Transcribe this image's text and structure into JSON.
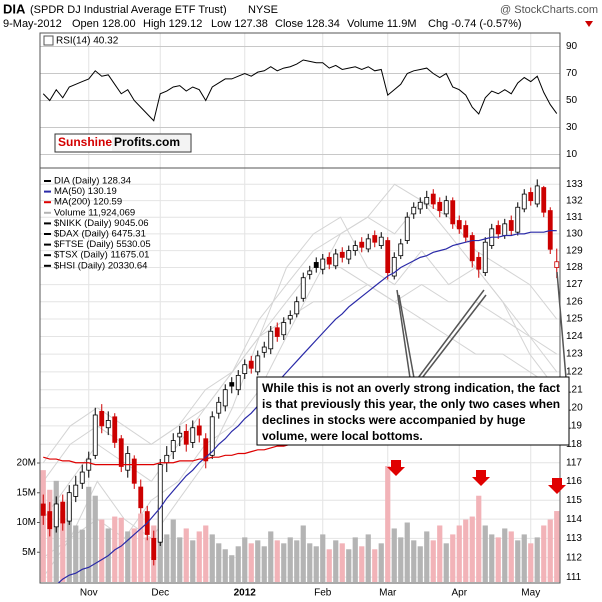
{
  "header": {
    "symbol": "DIA",
    "name": "(SPDR DJ Industrial Average ETF Trust)",
    "exchange": "NYSE",
    "source": "@ StockCharts.com",
    "date": "9-May-2012",
    "open": "Open 128.00",
    "high": "High 129.12",
    "low": "Low 127.38",
    "close": "Close 128.34",
    "volume": "Volume 11.9M",
    "change": "Chg -0.74 (-0.57%)"
  },
  "logo": {
    "brand": "Sunshine",
    "suffix": "Profits.com"
  },
  "annotation": {
    "lines": [
      "While this is not an overly strong indication, the fact",
      "is that previously this year, the only two cases when",
      "declines in stocks were accompanied by huge",
      "volume, were local bottoms."
    ]
  },
  "chart_data": [
    {
      "type": "line",
      "label": "RSI(14) 40.32",
      "color": "#000000",
      "ylim": [
        0,
        100
      ],
      "yticks": [
        10,
        30,
        50,
        70,
        90
      ],
      "grid": true,
      "values": [
        55,
        50,
        58,
        52,
        60,
        62,
        64,
        66,
        72,
        68,
        69,
        62,
        55,
        58,
        50,
        45,
        40,
        35,
        55,
        57,
        60,
        61,
        57,
        60,
        58,
        50,
        60,
        63,
        66,
        66,
        68,
        70,
        68,
        71,
        72,
        75,
        72,
        74,
        75,
        77,
        80,
        79,
        78,
        78,
        74,
        76,
        73,
        74,
        75,
        73,
        75,
        72,
        73,
        54,
        58,
        62,
        70,
        72,
        73,
        74,
        70,
        67,
        70,
        60,
        58,
        54,
        45,
        40,
        52,
        57,
        55,
        58,
        55,
        63,
        67,
        64,
        68,
        56,
        47,
        40.32
      ]
    },
    {
      "type": "candlestick",
      "name": "DIA (Daily) 128.34",
      "up_color": "#000000",
      "down_color": "#cc0000",
      "log_scale": true,
      "grid": true,
      "ylim": [
        110.7,
        134.0
      ],
      "yticks": [
        111,
        112,
        113,
        114,
        115,
        116,
        117,
        118,
        119,
        120,
        121,
        122,
        123,
        124,
        125,
        126,
        127,
        128,
        129,
        130,
        131,
        132,
        133
      ],
      "categories": [
        null,
        null,
        null,
        null,
        null,
        null,
        null,
        "Nov",
        null,
        null,
        null,
        null,
        null,
        null,
        null,
        null,
        null,
        null,
        "Dec",
        null,
        null,
        null,
        null,
        null,
        null,
        null,
        null,
        null,
        null,
        null,
        null,
        "2012",
        null,
        null,
        null,
        null,
        null,
        null,
        null,
        null,
        null,
        null,
        null,
        "Feb",
        null,
        null,
        null,
        null,
        null,
        null,
        null,
        null,
        null,
        "Mar",
        null,
        null,
        null,
        null,
        null,
        null,
        null,
        null,
        null,
        null,
        "Apr",
        null,
        null,
        null,
        null,
        null,
        null,
        null,
        null,
        null,
        null,
        "May",
        null,
        null,
        null,
        null
      ],
      "open": [
        114.8,
        114.4,
        113.6,
        114.9,
        113.9,
        115.2,
        115.9,
        116.6,
        117.4,
        119.8,
        118.9,
        119.5,
        118.3,
        116.6,
        117.2,
        115.7,
        114.4,
        113.0,
        112.8,
        117.0,
        117.6,
        118.4,
        118.7,
        118.1,
        119.0,
        118.3,
        117.4,
        119.7,
        120.1,
        121.4,
        121.0,
        121.9,
        122.6,
        122.0,
        123.1,
        123.3,
        124.5,
        124.1,
        125.0,
        125.3,
        126.2,
        127.6,
        128.3,
        127.9,
        128.6,
        128.1,
        128.9,
        128.5,
        129.0,
        129.5,
        129.1,
        129.9,
        129.3,
        129.6,
        127.5,
        128.7,
        129.6,
        131.2,
        131.5,
        131.8,
        132.4,
        131.9,
        131.2,
        132.0,
        130.8,
        130.5,
        129.9,
        128.6,
        127.7,
        129.3,
        130.5,
        129.9,
        130.8,
        130.1,
        131.5,
        132.5,
        131.8,
        132.8,
        131.4,
        128.0
      ],
      "high": [
        115.3,
        114.9,
        115.2,
        115.3,
        115.8,
        116.3,
        116.9,
        117.6,
        120.0,
        120.2,
        119.8,
        119.7,
        118.5,
        117.9,
        117.4,
        116.1,
        114.7,
        113.4,
        117.2,
        117.9,
        118.6,
        119.0,
        119.1,
        119.3,
        119.4,
        118.6,
        119.8,
        120.6,
        121.3,
        121.7,
        122.1,
        122.7,
        122.9,
        123.2,
        123.7,
        124.6,
        124.8,
        125.1,
        125.5,
        126.3,
        127.7,
        128.1,
        128.6,
        128.8,
        128.9,
        129.1,
        129.2,
        129.3,
        129.6,
        129.8,
        130.0,
        130.2,
        130.1,
        129.8,
        128.9,
        129.7,
        131.3,
        131.9,
        132.2,
        132.6,
        132.7,
        132.2,
        132.3,
        132.2,
        131.1,
        130.8,
        130.1,
        128.9,
        129.8,
        130.6,
        130.8,
        130.9,
        131.1,
        131.9,
        132.7,
        132.8,
        133.3,
        132.9,
        131.6,
        129.12
      ],
      "low": [
        113.7,
        113.1,
        113.3,
        113.4,
        113.7,
        114.9,
        115.6,
        116.2,
        117.2,
        118.6,
        118.5,
        117.8,
        116.5,
        116.2,
        115.6,
        114.3,
        112.9,
        111.6,
        112.6,
        116.5,
        117.2,
        117.9,
        117.6,
        117.8,
        118.1,
        116.7,
        117.2,
        119.4,
        119.8,
        120.8,
        120.7,
        121.6,
        121.9,
        121.8,
        122.8,
        123.0,
        123.7,
        123.8,
        124.7,
        125.1,
        126.0,
        127.3,
        127.7,
        127.6,
        127.9,
        127.9,
        128.3,
        128.2,
        128.7,
        128.9,
        128.9,
        129.2,
        129.1,
        127.3,
        127.3,
        128.5,
        129.4,
        130.9,
        131.2,
        131.5,
        131.5,
        131.0,
        131.0,
        130.3,
        130.0,
        129.5,
        128.0,
        127.4,
        127.5,
        129.1,
        129.7,
        129.7,
        129.9,
        129.9,
        131.3,
        131.7,
        131.6,
        131.0,
        128.8,
        127.38
      ],
      "close": [
        114.2,
        113.5,
        114.8,
        113.8,
        115.4,
        115.8,
        116.5,
        117.2,
        119.6,
        119.0,
        119.3,
        118.1,
        116.8,
        117.5,
        115.9,
        114.6,
        113.2,
        111.9,
        116.9,
        117.4,
        118.2,
        118.6,
        118.0,
        118.9,
        118.5,
        117.1,
        119.5,
        120.3,
        121.0,
        121.2,
        121.8,
        122.4,
        122.2,
        122.9,
        123.4,
        124.3,
        124.0,
        124.8,
        125.2,
        126.0,
        127.4,
        127.8,
        128.0,
        128.5,
        128.2,
        128.8,
        128.6,
        129.0,
        129.3,
        129.2,
        129.7,
        129.5,
        129.8,
        127.7,
        128.6,
        129.4,
        131.0,
        131.6,
        131.9,
        132.2,
        131.8,
        131.4,
        132.0,
        130.6,
        130.3,
        129.8,
        128.4,
        127.9,
        129.5,
        130.3,
        130.0,
        130.6,
        130.2,
        131.6,
        132.4,
        132.0,
        132.9,
        131.3,
        129.08,
        128.34
      ],
      "series": [
        {
          "name": "MA(50) 130.19",
          "color": "#2a2aa8",
          "values": [
            110.0,
            110.3,
            110.6,
            110.9,
            111.1,
            111.2,
            111.4,
            111.5,
            111.7,
            111.9,
            112.1,
            112.4,
            112.6,
            112.9,
            113.2,
            113.5,
            113.8,
            114.2,
            114.6,
            115.1,
            115.5,
            115.9,
            116.3,
            116.6,
            117.0,
            117.3,
            117.6,
            118.0,
            118.3,
            118.7,
            119.0,
            119.4,
            119.7,
            120.1,
            120.5,
            121.0,
            121.4,
            121.8,
            122.2,
            122.6,
            123.0,
            123.4,
            123.8,
            124.2,
            124.6,
            125.0,
            125.3,
            125.7,
            126.0,
            126.3,
            126.6,
            126.9,
            127.2,
            127.5,
            127.7,
            128.0,
            128.2,
            128.4,
            128.6,
            128.7,
            128.9,
            129.0,
            129.1,
            129.3,
            129.4,
            129.5,
            129.6,
            129.6,
            129.7,
            129.8,
            129.8,
            129.9,
            129.9,
            130.0,
            130.0,
            130.1,
            130.1,
            130.1,
            130.2,
            130.19
          ]
        },
        {
          "name": "MA(200) 120.59",
          "color": "#dd0000",
          "values": [
            117.3,
            117.2,
            117.2,
            117.1,
            117.1,
            117.0,
            117.0,
            117.0,
            116.9,
            116.9,
            116.9,
            116.9,
            116.9,
            116.9,
            116.9,
            116.9,
            116.9,
            116.9,
            117.0,
            117.0,
            117.0,
            117.1,
            117.1,
            117.1,
            117.2,
            117.2,
            117.3,
            117.3,
            117.4,
            117.4,
            117.5,
            117.5,
            117.6,
            117.7,
            117.7,
            117.8,
            117.9,
            117.9,
            118.0,
            118.1,
            118.2,
            118.3,
            118.4,
            118.5,
            118.6,
            118.7,
            118.8,
            118.9,
            119.0,
            119.1,
            119.2,
            119.3,
            119.4,
            119.5,
            119.6,
            119.7,
            119.8,
            119.9,
            119.95,
            120.0,
            120.05,
            120.1,
            120.1,
            120.15,
            120.2,
            120.2,
            120.25,
            120.3,
            120.3,
            120.35,
            120.4,
            120.4,
            120.45,
            120.45,
            120.5,
            120.5,
            120.55,
            120.55,
            120.6,
            120.59
          ]
        }
      ],
      "comparisons": [
        {
          "name": "$NIKK (Daily) 9045.06",
          "color": "#d4d4d4",
          "values": [
            112,
            113,
            114,
            113,
            115,
            116,
            118,
            119,
            121,
            124,
            127,
            130,
            131,
            133,
            132,
            130,
            128,
            126,
            124,
            122
          ]
        },
        {
          "name": "$DAX (Daily) 6475.31",
          "color": "#d4d4d4",
          "values": [
            114,
            116,
            118,
            117,
            116,
            118,
            120,
            122,
            125,
            127,
            129,
            130,
            131,
            130,
            132,
            131,
            129,
            128,
            127,
            125
          ]
        },
        {
          "name": "$FTSE (Daily) 5530.05",
          "color": "#d4d4d4",
          "values": [
            116,
            118,
            119,
            118,
            118,
            119,
            121,
            122,
            124,
            125,
            126,
            126,
            127,
            126,
            127,
            126,
            126,
            125,
            124,
            123
          ]
        },
        {
          "name": "$TSX (Daily) 11675.01",
          "color": "#d4d4d4",
          "values": [
            117,
            119,
            120,
            119,
            118,
            119,
            120,
            122,
            124,
            126,
            128,
            128,
            127,
            126,
            125,
            124,
            123,
            123,
            122,
            121
          ]
        },
        {
          "name": "$HSI (Daily) 20330.64",
          "color": "#d4d4d4",
          "values": [
            111,
            113,
            116,
            114,
            113,
            115,
            117,
            120,
            124,
            128,
            130,
            131,
            128,
            127,
            129,
            127,
            128,
            126,
            123,
            121
          ]
        }
      ]
    },
    {
      "type": "bar",
      "name": "Volume 11,924,069",
      "up_color": "#b4b4b4",
      "down_color": "#f2b3b8",
      "ylim": [
        0,
        20000000
      ],
      "yticks": [
        {
          "value": 5000000,
          "label": "5M"
        },
        {
          "value": 10000000,
          "label": "10M"
        },
        {
          "value": 15000000,
          "label": "15M"
        },
        {
          "value": 20000000,
          "label": "20M"
        }
      ],
      "values": [
        18800000,
        15500000,
        17000000,
        12000000,
        13500000,
        9500000,
        8800000,
        16000000,
        14500000,
        10500000,
        9000000,
        11000000,
        10800000,
        8500000,
        9000000,
        11500000,
        7500000,
        9500000,
        13000000,
        8000000,
        10500000,
        7500000,
        9000000,
        7000000,
        8500000,
        9500000,
        8000000,
        6500000,
        5500000,
        4500000,
        6000000,
        7500000,
        6500000,
        7000000,
        6000000,
        8500000,
        7000000,
        6500000,
        7500000,
        7000000,
        9500000,
        6500000,
        6000000,
        8000000,
        5500000,
        7000000,
        6500000,
        5500000,
        7500000,
        6000000,
        8000000,
        5500000,
        6500000,
        19500000,
        9000000,
        7500000,
        10000000,
        7000000,
        6000000,
        8500000,
        7000000,
        9500000,
        6500000,
        8000000,
        9500000,
        10500000,
        11000000,
        14500000,
        9500000,
        8000000,
        7500000,
        9000000,
        8500000,
        7000000,
        8000000,
        6500000,
        7500000,
        9500000,
        10500000,
        11924069
      ]
    }
  ]
}
